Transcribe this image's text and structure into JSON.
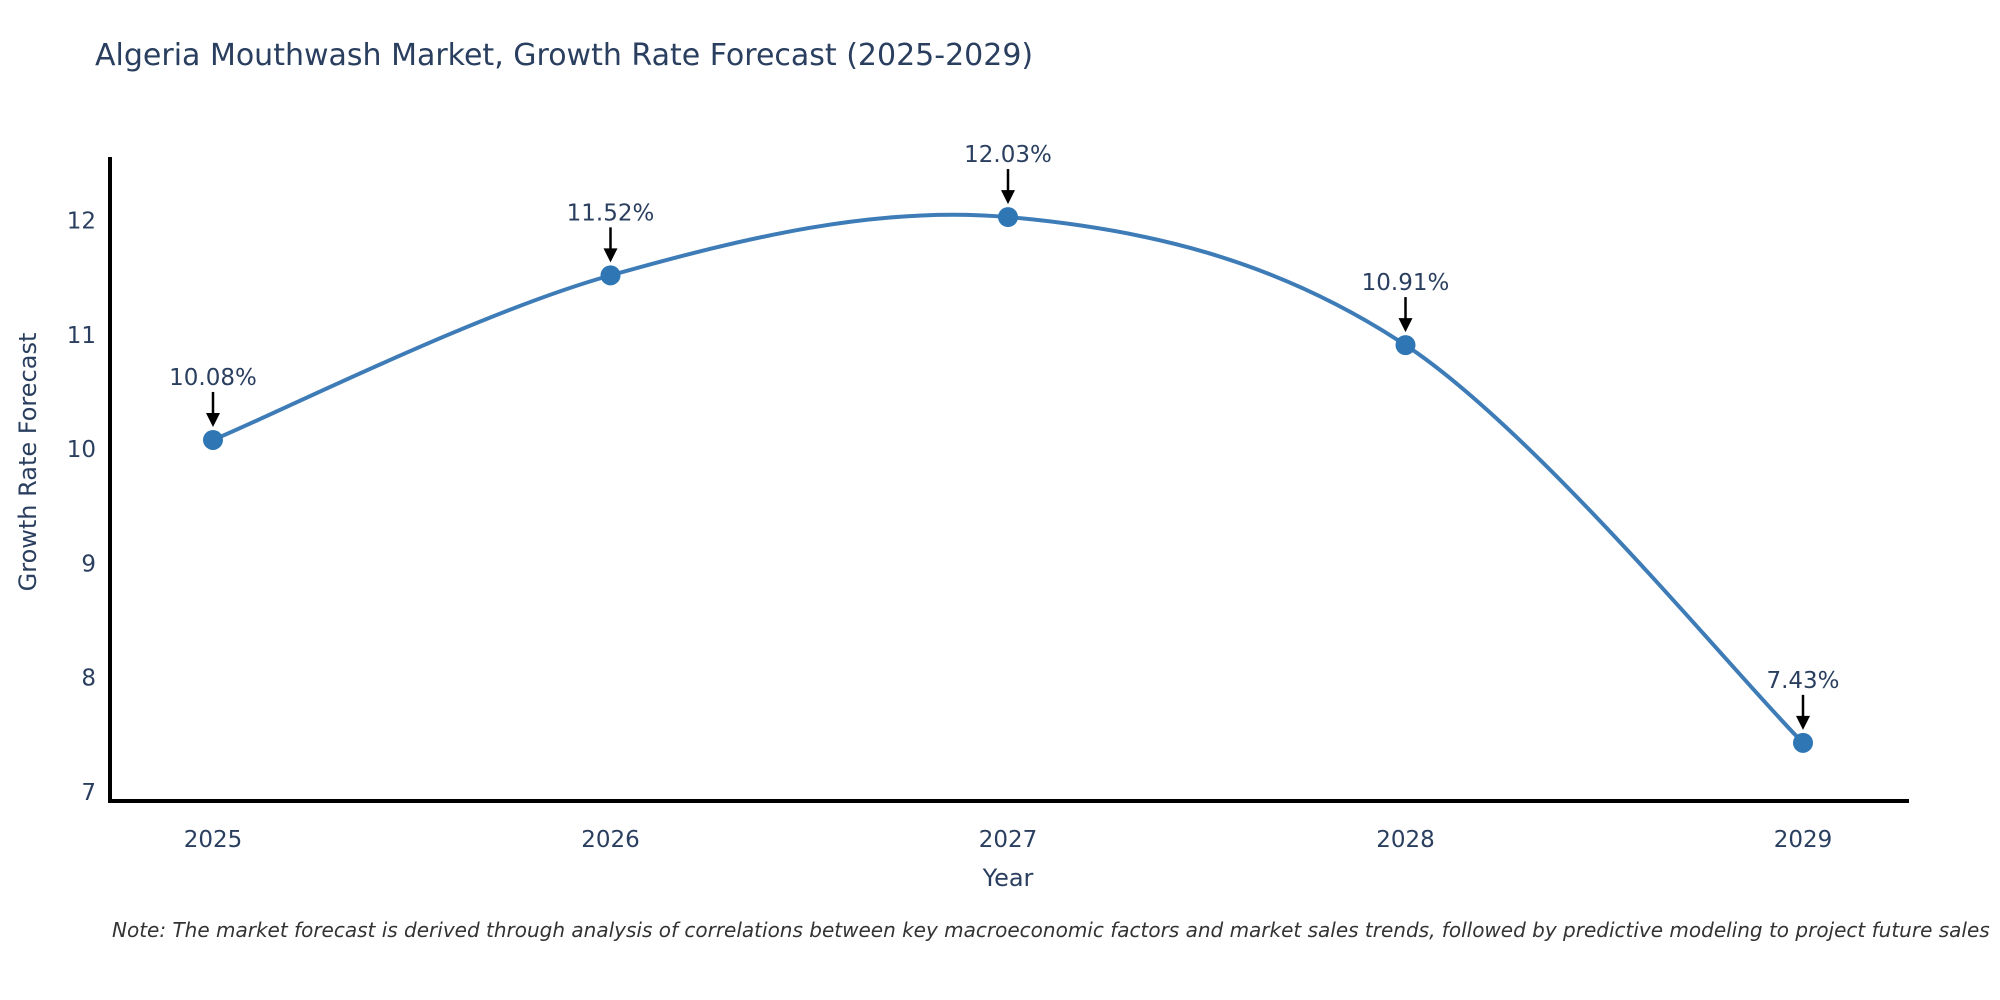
{
  "note": "Note: The market forecast is derived through analysis of correlations between key macroeconomic factors and market sales trends, followed by predictive modeling to project future sales",
  "chart_data": {
    "type": "line",
    "title": "Algeria Mouthwash Market, Growth Rate Forecast (2025-2029)",
    "x": [
      "2025",
      "2026",
      "2027",
      "2028",
      "2029"
    ],
    "series": [
      {
        "name": "Growth Rate Forecast",
        "values": [
          10.08,
          11.52,
          12.03,
          10.91,
          7.43
        ]
      }
    ],
    "point_labels": [
      "10.08%",
      "11.52%",
      "12.03%",
      "10.91%",
      "7.43%"
    ],
    "xlabel": "Year",
    "ylabel": "Growth Rate Forecast",
    "yticks": [
      7,
      8,
      9,
      10,
      11,
      12
    ],
    "ylim": [
      6.9,
      12.6
    ],
    "line_shape": "spline",
    "grid": false,
    "legend": false,
    "annotation_style": "down-arrow",
    "colors": {
      "line": "#3e7cb7",
      "marker": "#2e76b4",
      "axis": "#000000",
      "tick_text": "#2a3f5f",
      "axis_title_text": "#2a3f5f",
      "annotation_text": "#2a3f5f",
      "arrow": "#000000",
      "title_text": "#2a3f5f",
      "note_text": "#333333"
    }
  }
}
